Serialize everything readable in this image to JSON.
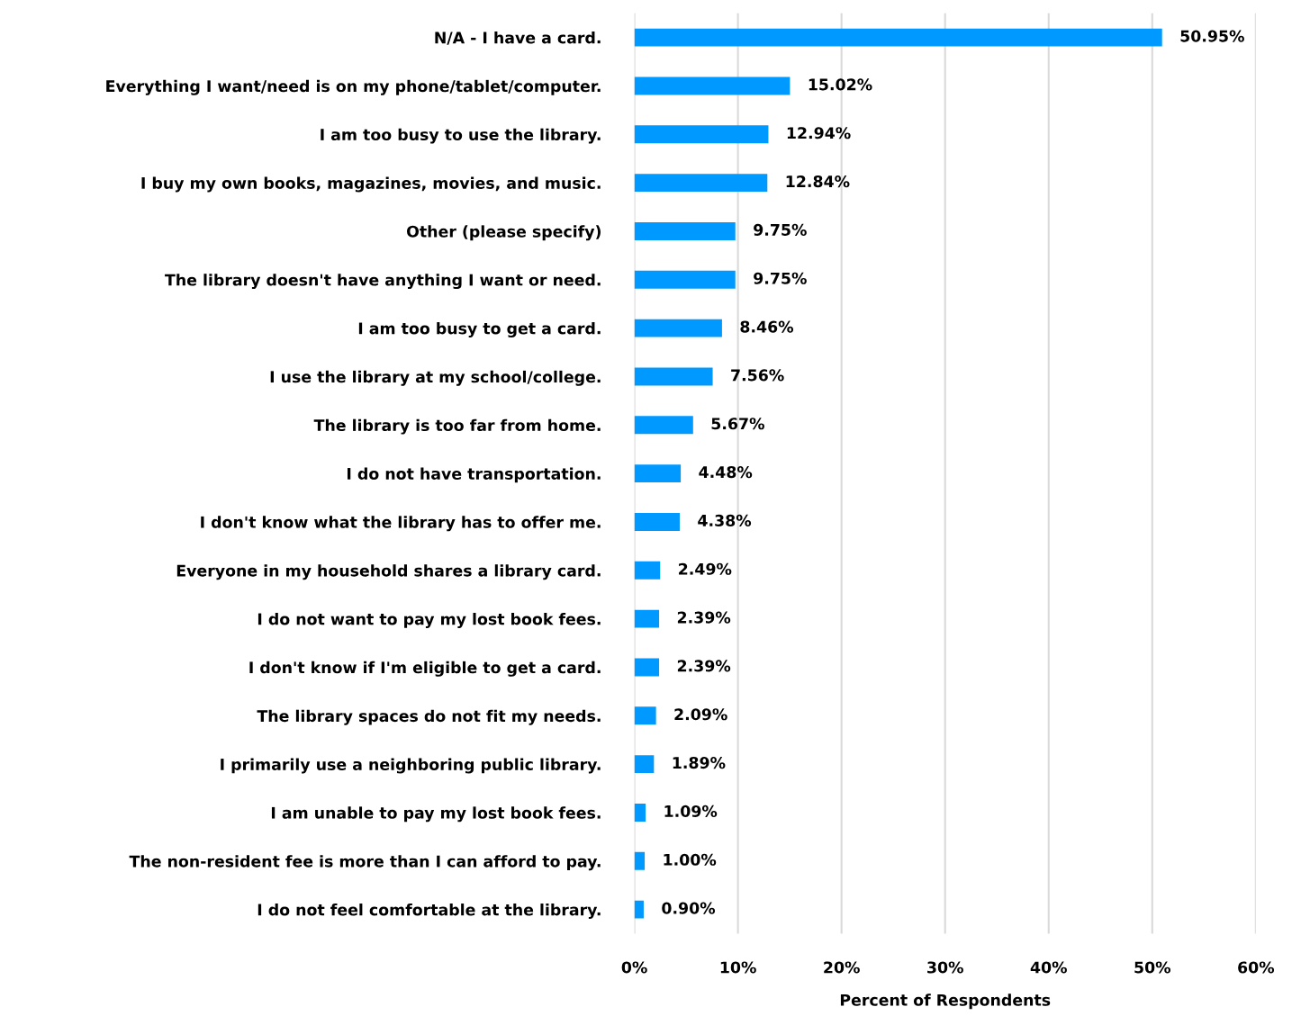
{
  "chart_data": {
    "type": "bar",
    "orientation": "horizontal",
    "xlabel": "Percent of Respondents",
    "categories": [
      "N/A - I have a card.",
      "Everything I want/need is on my phone/tablet/computer.",
      "I am too busy to use the library.",
      "I buy my own books, magazines, movies, and music.",
      "Other (please specify)",
      "The library doesn't have anything I want or need.",
      "I am too busy to get a card.",
      "I use the library at my school/college.",
      "The library is too far from home.",
      "I do not have transportation.",
      "I don't know what the library has to offer me.",
      "Everyone in my household shares a library card.",
      "I do not want to pay my lost book fees.",
      "I don't know if I'm eligible to get a card.",
      "The library spaces do not fit my needs.",
      "I primarily use a neighboring public library.",
      "I am unable to pay my lost book fees.",
      "The non-resident fee is more than I can afford to pay.",
      "I do not feel comfortable at the library."
    ],
    "values": [
      50.95,
      15.02,
      12.94,
      12.84,
      9.75,
      9.75,
      8.46,
      7.56,
      5.67,
      4.48,
      4.38,
      2.49,
      2.39,
      2.39,
      2.09,
      1.89,
      1.09,
      1.0,
      0.9
    ],
    "value_labels": [
      "50.95%",
      "15.02%",
      "12.94%",
      "12.84%",
      "9.75%",
      "9.75%",
      "8.46%",
      "7.56%",
      "5.67%",
      "4.48%",
      "4.38%",
      "2.49%",
      "2.39%",
      "2.39%",
      "2.09%",
      "1.89%",
      "1.09%",
      "1.00%",
      "0.90%"
    ],
    "color": "#0099ff",
    "xlim": [
      0,
      60
    ],
    "xticks": [
      {
        "value": 0,
        "label": "0%"
      },
      {
        "value": 10,
        "label": "10%"
      },
      {
        "value": 20,
        "label": "20%"
      },
      {
        "value": 30,
        "label": "30%"
      },
      {
        "value": 40,
        "label": "40%"
      },
      {
        "value": 50,
        "label": "50%"
      },
      {
        "value": 60,
        "label": "60%"
      }
    ],
    "grid": "x",
    "legend": false
  }
}
